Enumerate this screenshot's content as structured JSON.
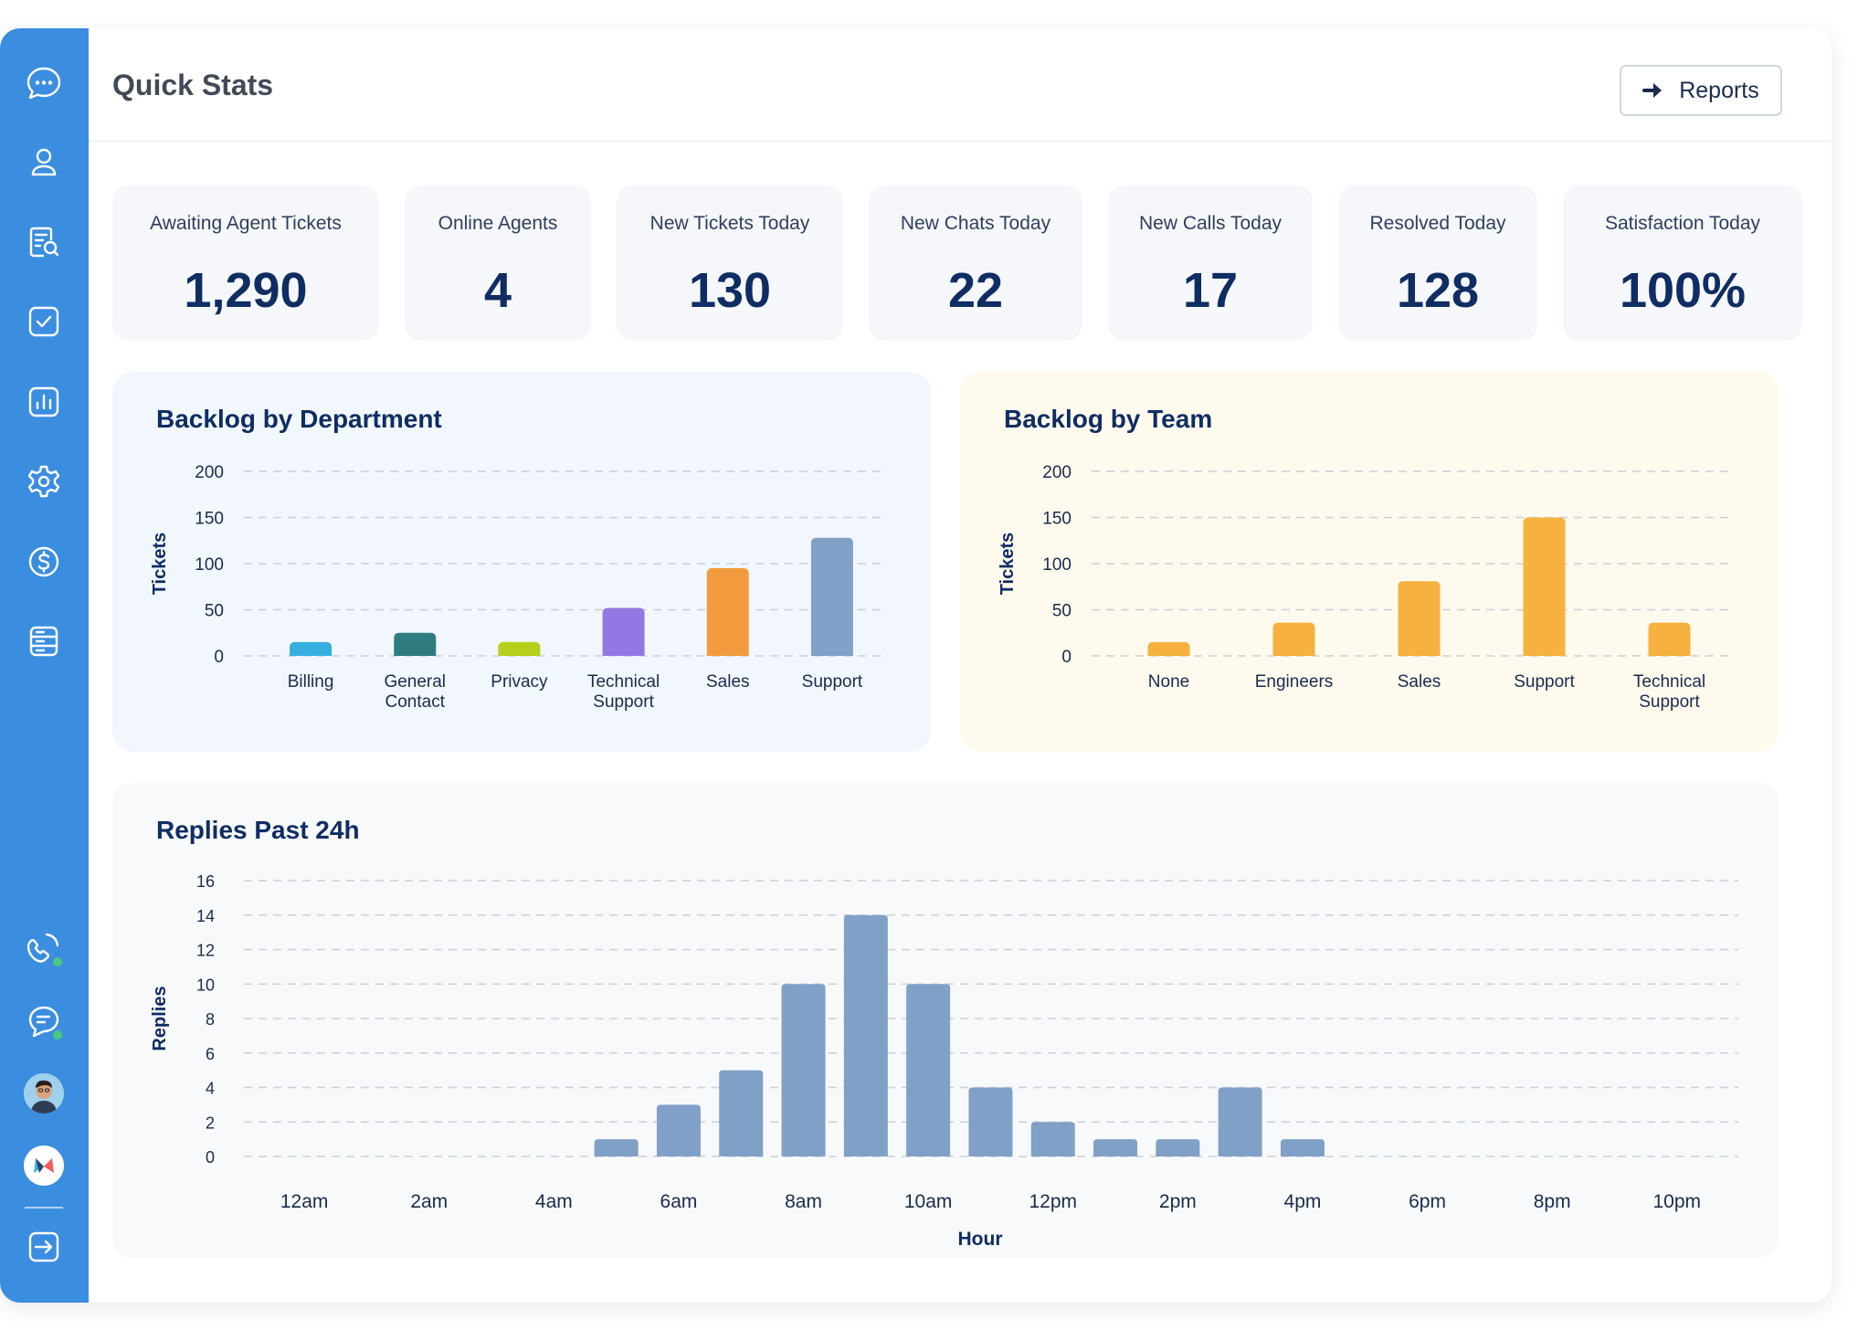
{
  "header": {
    "title": "Quick Stats",
    "reports_label": "Reports"
  },
  "sidebar": {
    "items": [
      {
        "name": "chat-bubble-icon"
      },
      {
        "name": "user-icon"
      },
      {
        "name": "ticket-search-icon"
      },
      {
        "name": "task-check-icon"
      },
      {
        "name": "reports-chart-icon"
      },
      {
        "name": "settings-gear-icon"
      },
      {
        "name": "billing-dollar-icon"
      },
      {
        "name": "server-database-icon"
      }
    ],
    "bottom": [
      {
        "name": "phone-icon",
        "status": "online"
      },
      {
        "name": "chat-status-icon",
        "status": "online"
      },
      {
        "name": "user-avatar"
      },
      {
        "name": "app-logo"
      },
      {
        "name": "logout-icon"
      }
    ],
    "colors": {
      "background": "#3b8ddf",
      "status_online": "#4cc77f"
    }
  },
  "stats": [
    {
      "label": "Awaiting Agent Tickets",
      "value": "1,290"
    },
    {
      "label": "Online Agents",
      "value": "4"
    },
    {
      "label": "New Tickets Today",
      "value": "130"
    },
    {
      "label": "New Chats Today",
      "value": "22"
    },
    {
      "label": "New Calls Today",
      "value": "17"
    },
    {
      "label": "Resolved Today",
      "value": "128"
    },
    {
      "label": "Satisfaction Today",
      "value": "100%"
    }
  ],
  "chart_data": [
    {
      "id": "dept",
      "type": "bar",
      "title": "Backlog by Department",
      "ylabel": "Tickets",
      "xlabel": "",
      "ylim": [
        0,
        200
      ],
      "yticks": [
        0,
        50,
        100,
        150,
        200
      ],
      "grid": true,
      "categories": [
        "Billing",
        "General Contact",
        "Privacy",
        "Technical Support",
        "Sales",
        "Support"
      ],
      "values": [
        15,
        25,
        15,
        52,
        95,
        128
      ],
      "colors": [
        "#36afe0",
        "#2f7c7e",
        "#b5cf1a",
        "#9178e3",
        "#f29b3e",
        "#81a0c7"
      ]
    },
    {
      "id": "team",
      "type": "bar",
      "title": "Backlog by Team",
      "ylabel": "Tickets",
      "xlabel": "",
      "ylim": [
        0,
        200
      ],
      "yticks": [
        0,
        50,
        100,
        150,
        200
      ],
      "grid": true,
      "categories": [
        "None",
        "Engineers",
        "Sales",
        "Support",
        "Technical Support"
      ],
      "values": [
        15,
        36,
        81,
        150,
        36
      ],
      "colors": [
        "#f6b13f"
      ]
    },
    {
      "id": "replies",
      "type": "bar",
      "title": "Replies Past 24h",
      "ylabel": "Replies",
      "xlabel": "Hour",
      "ylim": [
        0,
        16
      ],
      "yticks": [
        0,
        2,
        4,
        6,
        8,
        10,
        12,
        14,
        16
      ],
      "grid": true,
      "x": [
        0,
        1,
        2,
        3,
        4,
        5,
        6,
        7,
        8,
        9,
        10,
        11,
        12,
        13,
        14,
        15,
        16,
        17,
        18,
        19,
        20,
        21,
        22,
        23
      ],
      "xtick_labels": [
        "12am",
        "2am",
        "4am",
        "6am",
        "8am",
        "10am",
        "12pm",
        "2pm",
        "4pm",
        "6pm",
        "8pm",
        "10pm"
      ],
      "values": [
        0,
        0,
        0,
        0,
        0,
        1,
        3,
        5,
        10,
        14,
        10,
        4,
        2,
        1,
        1,
        4,
        1,
        0,
        0,
        0,
        0,
        0,
        0,
        0
      ],
      "colors": [
        "#81a0c7"
      ]
    }
  ]
}
